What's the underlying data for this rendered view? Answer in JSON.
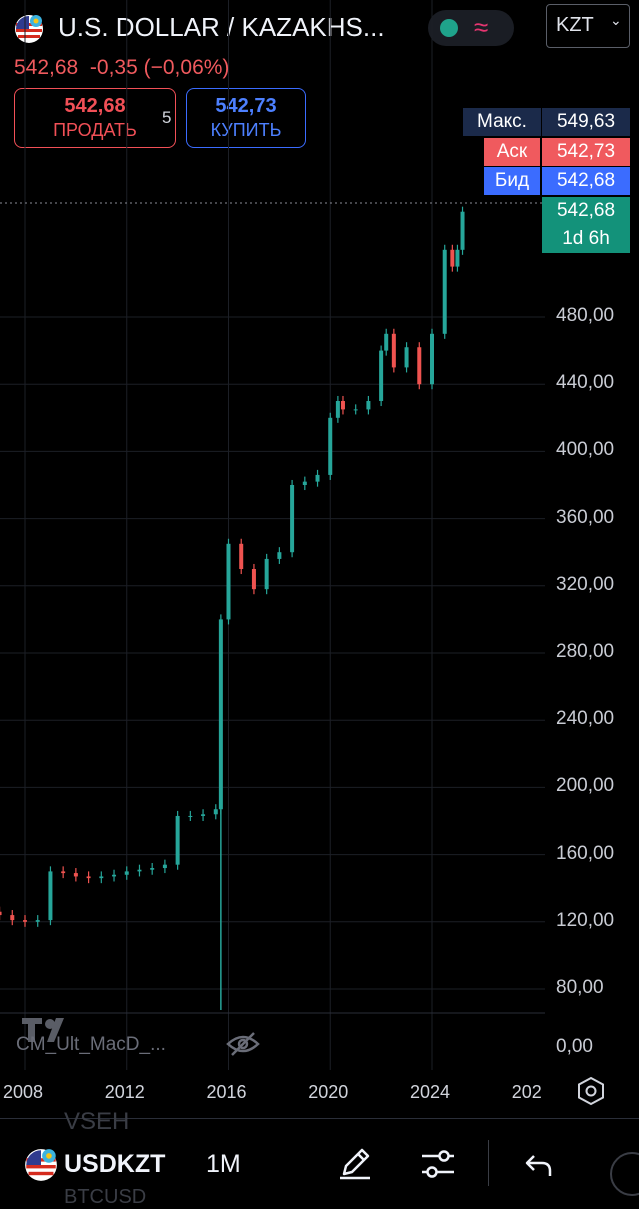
{
  "header": {
    "title": "U.S. DOLLAR / KAZAKHS...",
    "flag_icon": "us-kz-flag-icon",
    "status_icon": "market-status-dot-icon",
    "wave_icon": "wave-icon",
    "currency": "KZT"
  },
  "quote": {
    "last": "542,68",
    "change": "-0,35",
    "change_pct": "(−0,06%)",
    "sell_price": "542,68",
    "sell_label": "ПРОДАТЬ",
    "spread": "5",
    "buy_price": "542,73",
    "buy_label": "КУПИТЬ"
  },
  "tags": {
    "max_label": "Макс.",
    "max_value": "549,63",
    "ask_label": "Аск",
    "ask_value": "542,73",
    "bid_label": "Бид",
    "bid_value": "542,68",
    "last_value": "542,68",
    "countdown": "1d 6h"
  },
  "price_axis": [
    "480,00",
    "440,00",
    "400,00",
    "360,00",
    "320,00",
    "280,00",
    "240,00",
    "200,00",
    "160,00",
    "120,00",
    "80,00"
  ],
  "indicator_axis": "0,00",
  "time_axis": [
    "2008",
    "2012",
    "2016",
    "2020",
    "2024",
    "202"
  ],
  "indicator_label": "CM_Ult_MacD_...",
  "bottom_bar": {
    "ghost_top": "VSEH",
    "symbol": "USDKZT",
    "interval": "1M",
    "ghost_bottom": "BTCUSD",
    "pencil_icon": "pencil-icon",
    "settings_icon": "sliders-icon",
    "undo_icon": "undo-icon"
  },
  "colors": {
    "up": "#26a69a",
    "down": "#ef5350",
    "max_tag": "#1b2a4a",
    "ask_tag": "#f05a5e",
    "bid_tag": "#3b6cff",
    "last_tag": "#13927a"
  },
  "chart_data": {
    "type": "candlestick",
    "title": "",
    "ylim": [
      70,
      560
    ],
    "yticks": [
      80,
      120,
      160,
      200,
      240,
      280,
      320,
      360,
      400,
      440,
      480
    ],
    "x": [
      2006.0,
      2006.5,
      2007.0,
      2007.5,
      2008.0,
      2008.5,
      2009.0,
      2009.5,
      2010.0,
      2010.5,
      2011.0,
      2011.5,
      2012.0,
      2012.5,
      2013.0,
      2013.5,
      2014.0,
      2014.5,
      2015.0,
      2015.5,
      2015.7,
      2016.0,
      2016.5,
      2017.0,
      2017.5,
      2018.0,
      2018.5,
      2019.0,
      2019.5,
      2020.0,
      2020.3,
      2020.5,
      2021.0,
      2021.5,
      2022.0,
      2022.2,
      2022.5,
      2023.0,
      2023.5,
      2024.0,
      2024.5,
      2024.8,
      2025.0,
      2025.2
    ],
    "close": [
      141,
      126,
      124,
      121,
      120,
      121,
      150,
      149,
      147,
      146,
      147,
      148,
      150,
      151,
      152,
      154,
      183,
      183,
      184,
      187,
      300,
      345,
      330,
      318,
      336,
      340,
      380,
      382,
      386,
      420,
      430,
      425,
      425,
      430,
      460,
      470,
      450,
      462,
      440,
      470,
      520,
      510,
      520,
      542.68
    ]
  }
}
